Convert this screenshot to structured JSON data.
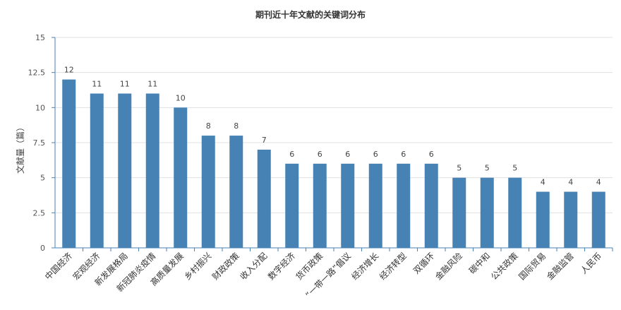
{
  "chart_data": {
    "type": "bar",
    "title": "期刊近十年文献的关键词分布",
    "xlabel": "",
    "ylabel": "文献量（篇）",
    "ylim": [
      0,
      15
    ],
    "yticks": [
      "0",
      "2.5",
      "5",
      "7.5",
      "10",
      "12.5",
      "15"
    ],
    "grid": true,
    "legend": "none",
    "bar_color": "#4682b4",
    "categories": [
      "中国经济",
      "宏观经济",
      "新发展格局",
      "新冠肺炎疫情",
      "高质量发展",
      "乡村振兴",
      "财政政策",
      "收入分配",
      "数字经济",
      "货币政策",
      "“一带一路”倡议",
      "经济增长",
      "经济转型",
      "双循环",
      "金融风险",
      "碳中和",
      "公共政策",
      "国际贸易",
      "金融监管",
      "人民币"
    ],
    "values": [
      12,
      11,
      11,
      11,
      10,
      8,
      8,
      7,
      6,
      6,
      6,
      6,
      6,
      6,
      5,
      5,
      5,
      4,
      4,
      4
    ]
  }
}
